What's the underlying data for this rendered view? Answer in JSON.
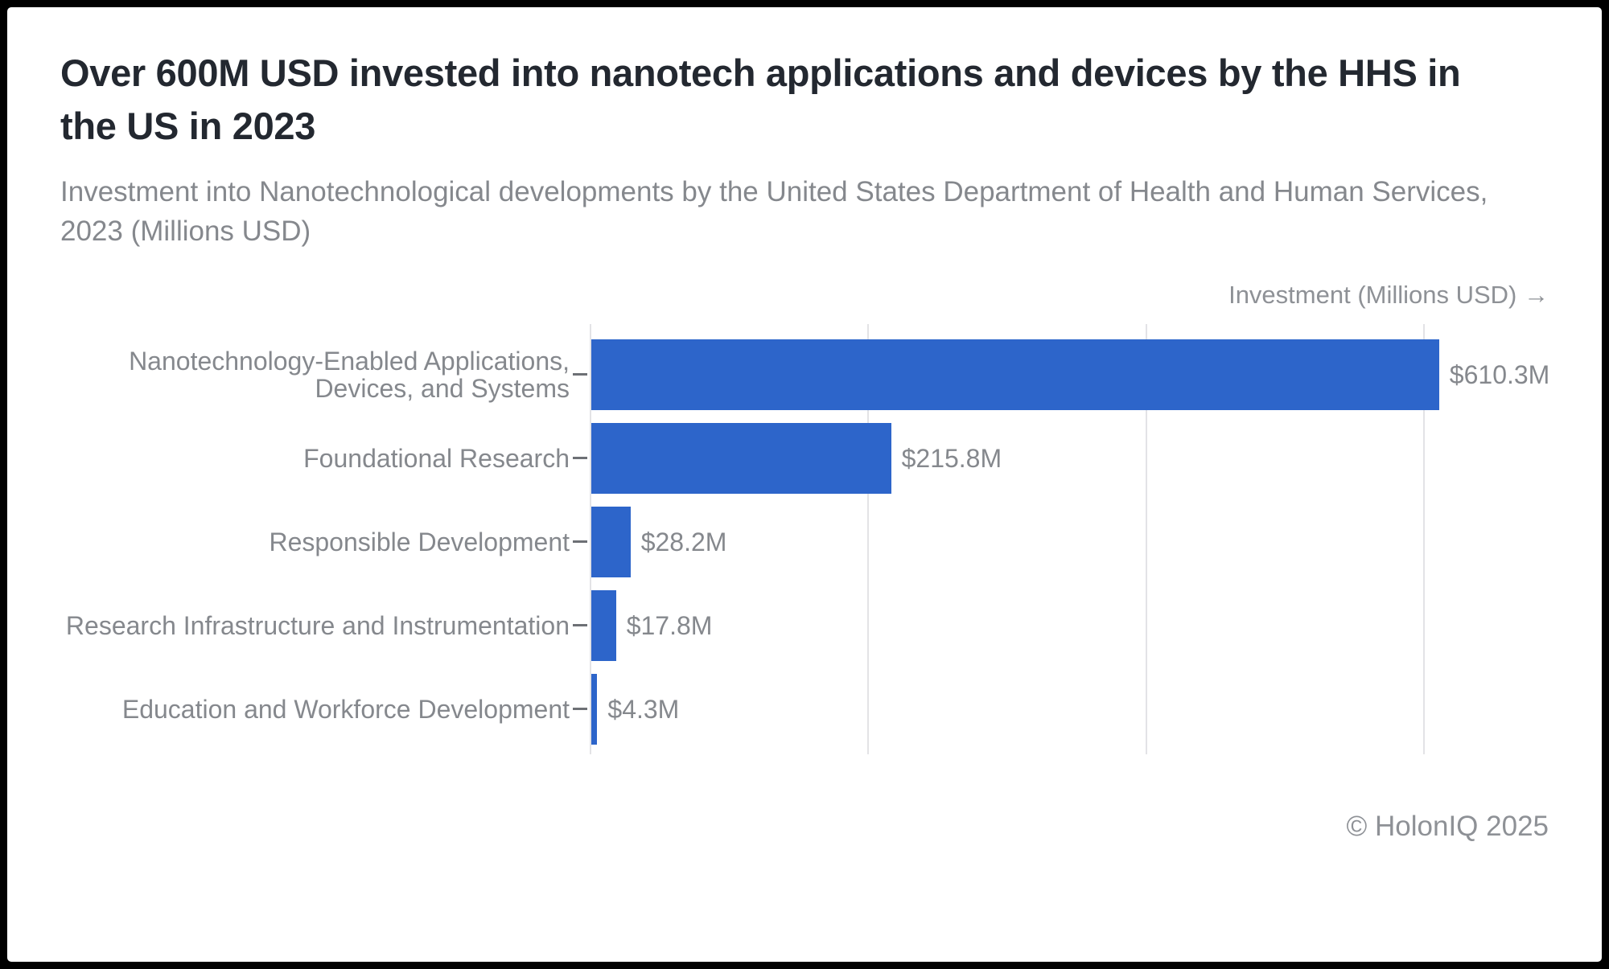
{
  "header": {
    "title": "Over 600M USD invested into nanotech applications and devices by the HHS in the US in 2023",
    "subtitle": "Investment into Nanotechnological developments by the United States Department of Health and Human Services, 2023 (Millions USD)"
  },
  "chart_data": {
    "type": "bar",
    "orientation": "horizontal",
    "title": "Over 600M USD invested into nanotech applications and devices by the HHS in the US in 2023",
    "subtitle": "Investment into Nanotechnological developments by the United States Department of Health and Human Services, 2023 (Millions USD)",
    "xlabel": "Investment (Millions USD) →",
    "ylabel": "",
    "unit": "Millions USD",
    "categories": [
      "Nanotechnology-Enabled Applications, Devices, and Systems",
      "Foundational Research",
      "Responsible Development",
      "Research Infrastructure and Instrumentation",
      "Education and Workforce Development"
    ],
    "values": [
      610.3,
      215.8,
      28.2,
      17.8,
      4.3
    ],
    "value_labels": [
      "$610.3M",
      "$215.8M",
      "$28.2M",
      "$17.8M",
      "$4.3M"
    ],
    "xlim": [
      0,
      690
    ],
    "grid_ticks": [
      0,
      200,
      400,
      600
    ],
    "grid": true,
    "legend": false
  },
  "footer": {
    "credit": "© HolonIQ 2025"
  },
  "colors": {
    "bar": "#2d65ca",
    "grid": "#e3e3e6",
    "tick": "#6d7075",
    "muted": "#85888d",
    "muted2": "#8e9196",
    "title": "#232830",
    "card_bg": "#ffffff",
    "frame": "#000000"
  }
}
